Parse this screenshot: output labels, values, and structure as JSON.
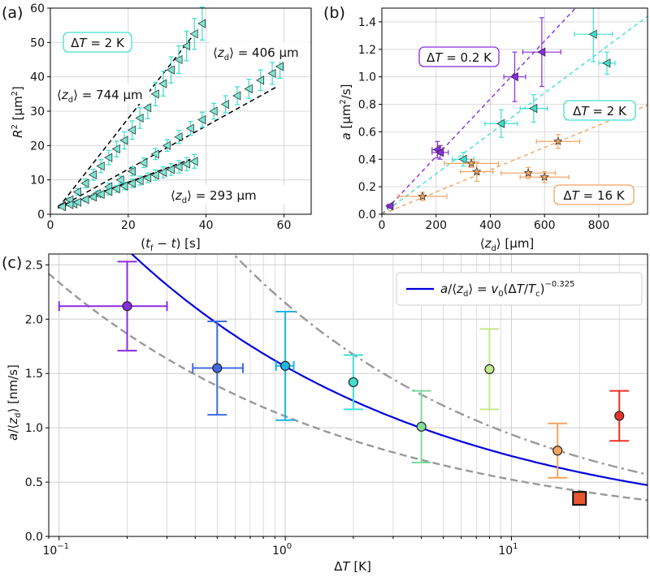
{
  "chart_data": [
    {
      "panel": "(a)",
      "type": "scatter",
      "xlabel": "(t_f − t) [s]",
      "ylabel": "R² [μm²]",
      "xlim": [
        0,
        67
      ],
      "ylim": [
        0,
        60
      ],
      "xticks": [
        0,
        20,
        40,
        60
      ],
      "yticks": [
        0,
        10,
        20,
        30,
        40,
        50,
        60
      ],
      "grid": true,
      "marker": "left-triangle",
      "marker_color": "#7fe5d2",
      "errorbar_color": "#33e0cc",
      "fit_style": "dashed black",
      "annotations": [
        {
          "text": "ΔT = 2 K",
          "boxed": true,
          "box_color": "#40e0d0"
        },
        {
          "text": "⟨z_d⟩ = 406 μm"
        },
        {
          "text": "⟨z_d⟩ = 744 μm"
        },
        {
          "text": "⟨z_d⟩ = 293 μm"
        }
      ],
      "series": [
        {
          "name": "⟨z_d⟩ = 744 μm",
          "x": [
            3,
            5,
            7,
            9,
            11,
            13,
            15,
            17,
            19,
            21,
            23,
            25,
            27,
            29,
            31,
            33,
            35,
            37,
            39
          ],
          "y": [
            2.5,
            4.2,
            6.5,
            9,
            11.5,
            14,
            16.5,
            19,
            21.5,
            24.5,
            28,
            31,
            35,
            38,
            42,
            45,
            49,
            52.5,
            55.5
          ],
          "yerr": [
            0.5,
            0.7,
            1,
            1.3,
            1.6,
            1.9,
            2.1,
            2.3,
            2.5,
            2.7,
            3,
            3.2,
            3.4,
            3.6,
            3.8,
            4,
            4.3,
            4.5,
            4.8
          ]
        },
        {
          "name": "⟨z_d⟩ = 406 μm",
          "x": [
            3,
            6,
            9,
            12,
            15,
            18,
            21,
            24,
            27,
            30,
            33,
            36,
            39,
            42,
            45,
            48,
            51,
            54,
            57,
            59
          ],
          "y": [
            2.3,
            3,
            4.3,
            6,
            8,
            10,
            12.5,
            15,
            17.5,
            20,
            22.5,
            25,
            27.5,
            30,
            32,
            34.5,
            36.5,
            39,
            41,
            43
          ],
          "yerr": [
            0.3,
            0.4,
            0.6,
            0.8,
            1,
            1.1,
            1.3,
            1.4,
            1.6,
            1.7,
            1.9,
            2,
            2.2,
            2.3,
            2.5,
            2.6,
            2.8,
            3,
            3.2,
            3.4
          ]
        },
        {
          "name": "⟨z_d⟩ = 293 μm",
          "x": [
            3,
            5,
            7,
            9,
            11,
            13,
            15,
            17,
            19,
            21,
            23,
            25,
            27,
            29,
            31,
            33,
            35,
            37
          ],
          "y": [
            2.2,
            2.8,
            3.5,
            4.3,
            5,
            5.8,
            6.6,
            7.4,
            8.2,
            9,
            9.8,
            10.6,
            11.4,
            12.2,
            13,
            13.8,
            14.6,
            15.4
          ],
          "yerr": [
            0.3,
            0.4,
            0.5,
            0.6,
            0.7,
            0.8,
            0.9,
            1,
            1.1,
            1.2,
            1.3,
            1.4,
            1.5,
            1.6,
            1.7,
            1.8,
            1.9,
            2
          ]
        }
      ],
      "fits": [
        {
          "x": [
            2,
            38
          ],
          "y": [
            1.8,
            54
          ]
        },
        {
          "x": [
            2,
            58
          ],
          "y": [
            1.8,
            37
          ]
        },
        {
          "x": [
            2,
            36
          ],
          "y": [
            1.8,
            16
          ]
        }
      ]
    },
    {
      "panel": "(b)",
      "type": "scatter",
      "xlabel": "⟨z_d⟩ [μm]",
      "ylabel": "a [μm²/s]",
      "xlim": [
        0,
        980
      ],
      "ylim": [
        0,
        1.5
      ],
      "xticks": [
        0,
        200,
        400,
        600,
        800
      ],
      "yticks": [
        0.0,
        0.2,
        0.4,
        0.6,
        0.8,
        1.0,
        1.2,
        1.4
      ],
      "grid": true,
      "series": [
        {
          "name": "ΔT = 0.2 K",
          "color": "#8a2be2",
          "marker": "left-triangle",
          "x": [
            30,
            205,
            215,
            490,
            590
          ],
          "y": [
            0.06,
            0.47,
            0.45,
            1.0,
            1.18
          ],
          "xerr": [
            10,
            20,
            30,
            40,
            70
          ],
          "yerr": [
            0.01,
            0.06,
            0.05,
            0.18,
            0.25
          ]
        },
        {
          "name": "ΔT = 2 K",
          "color": "#40e0d0",
          "marker": "left-triangle",
          "x": [
            300,
            440,
            560,
            780,
            830
          ],
          "y": [
            0.4,
            0.66,
            0.77,
            1.31,
            1.1
          ],
          "xerr": [
            40,
            60,
            50,
            70,
            30
          ],
          "yerr": [
            0.05,
            0.1,
            0.1,
            0.2,
            0.08
          ]
        },
        {
          "name": "ΔT = 16 K",
          "color": "#f4a460",
          "marker": "star",
          "x": [
            150,
            330,
            350,
            540,
            600,
            650
          ],
          "y": [
            0.13,
            0.37,
            0.31,
            0.3,
            0.27,
            0.53
          ],
          "xerr": [
            90,
            100,
            60,
            100,
            90,
            80
          ],
          "yerr": [
            0.03,
            0.03,
            0.07,
            0.04,
            0.04,
            0.05
          ]
        }
      ],
      "fits": [
        {
          "color": "#8a2be2",
          "slope": 0.0021
        },
        {
          "color": "#40e0d0",
          "slope": 0.00147
        },
        {
          "color": "#f4a460",
          "slope": 0.00081
        }
      ],
      "annotations": [
        {
          "text": "ΔT = 0.2 K",
          "box_color": "#8a2be2"
        },
        {
          "text": "ΔT = 2 K",
          "box_color": "#40e0d0"
        },
        {
          "text": "ΔT = 16 K",
          "box_color": "#f4a460"
        }
      ]
    },
    {
      "panel": "(c)",
      "type": "scatter",
      "xlabel": "ΔT [K]",
      "ylabel": "a/⟨z_d⟩ [nm/s]",
      "xscale": "log",
      "xlim": [
        0.09,
        40
      ],
      "ylim": [
        0,
        2.6
      ],
      "xticks": [
        0.1,
        1,
        10
      ],
      "xtick_labels": [
        "10",
        "10",
        "10"
      ],
      "xtick_exponents": [
        "−1",
        "0",
        "1"
      ],
      "yticks": [
        0.0,
        0.5,
        1.0,
        1.5,
        2.0,
        2.5
      ],
      "grid": true,
      "legend": {
        "text": "a/⟨z_d⟩ = v_0(ΔT/T_c)^−0.325",
        "placement": "top-right"
      },
      "points": [
        {
          "x": 0.2,
          "y": 2.12,
          "xerr_low": 0.1,
          "xerr_high": 0.3,
          "yerr": 0.41,
          "color": "#8a2be2"
        },
        {
          "x": 0.5,
          "y": 1.55,
          "xerr_low": 0.39,
          "xerr_high": 0.65,
          "yerr": 0.43,
          "color": "#4169e1"
        },
        {
          "x": 1.0,
          "y": 1.57,
          "xerr_low": 0.91,
          "xerr_high": 1.09,
          "yerr": 0.5,
          "color": "#1eb4e6"
        },
        {
          "x": 2.0,
          "y": 1.42,
          "yerr": 0.25,
          "color": "#40e0d0"
        },
        {
          "x": 4.0,
          "y": 1.01,
          "yerr": 0.33,
          "color": "#7fdc9a"
        },
        {
          "x": 8.0,
          "y": 1.54,
          "yerr": 0.37,
          "color": "#c5e88a"
        },
        {
          "x": 16.0,
          "y": 0.79,
          "yerr": 0.25,
          "color": "#f4a460"
        },
        {
          "x": 30.0,
          "y": 1.11,
          "yerr": 0.23,
          "color": "#e8322a"
        }
      ],
      "square_point": {
        "x": 20.0,
        "y": 0.35,
        "color": "#e8572e"
      },
      "curves": [
        {
          "name": "a/⟨z_d⟩ = v_0(ΔT/T_c)^−0.325",
          "style": "solid",
          "color": "#0000e0",
          "amplitude": 1.565,
          "exponent": -0.325
        },
        {
          "style": "dashed",
          "color": "#999999",
          "amplitude": 1.106,
          "exponent": -0.325
        },
        {
          "style": "dashdot",
          "color": "#999999",
          "amplitude": 2.15,
          "exponent": -0.36
        }
      ]
    }
  ]
}
